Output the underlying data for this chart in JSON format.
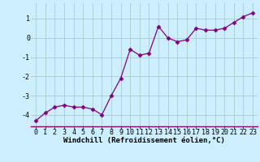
{
  "x": [
    0,
    1,
    2,
    3,
    4,
    5,
    6,
    7,
    8,
    9,
    10,
    11,
    12,
    13,
    14,
    15,
    16,
    17,
    18,
    19,
    20,
    21,
    22,
    23
  ],
  "y": [
    -4.3,
    -3.9,
    -3.6,
    -3.5,
    -3.6,
    -3.6,
    -3.7,
    -4.0,
    -3.0,
    -2.1,
    -0.6,
    -0.9,
    -0.8,
    0.6,
    0.0,
    -0.2,
    -0.1,
    0.5,
    0.4,
    0.4,
    0.5,
    0.8,
    1.1,
    1.3
  ],
  "xlabel": "Windchill (Refroidissement éolien,°C)",
  "xlim": [
    -0.5,
    23.5
  ],
  "ylim": [
    -4.6,
    1.8
  ],
  "yticks": [
    -4,
    -3,
    -2,
    -1,
    0,
    1
  ],
  "xticks": [
    0,
    1,
    2,
    3,
    4,
    5,
    6,
    7,
    8,
    9,
    10,
    11,
    12,
    13,
    14,
    15,
    16,
    17,
    18,
    19,
    20,
    21,
    22,
    23
  ],
  "line_color": "#800080",
  "marker": "D",
  "marker_size": 2.5,
  "bg_color": "#cceeff",
  "grid_color": "#aacccc",
  "xlabel_fontsize": 6.5,
  "tick_fontsize": 6.0,
  "linewidth": 0.9
}
